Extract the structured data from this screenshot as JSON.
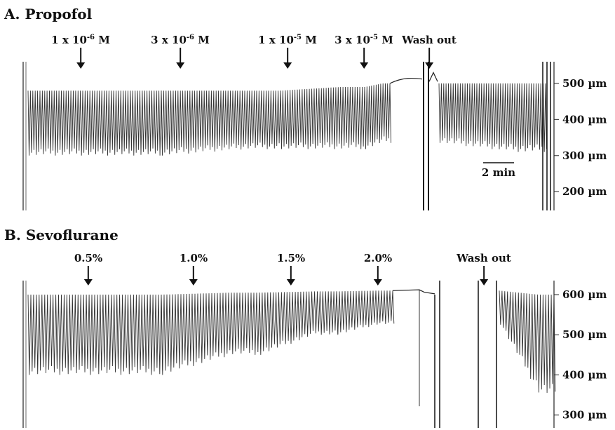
{
  "panels": [
    {
      "id": "A",
      "title": "A. Propofol",
      "markers": [
        {
          "label": "1 x 10",
          "sup": "-6",
          "unit": " M"
        },
        {
          "label": "3 x 10",
          "sup": "-6",
          "unit": " M"
        },
        {
          "label": "1 x 10",
          "sup": "-5",
          "unit": " M"
        },
        {
          "label": "3 x 10",
          "sup": "-5",
          "unit": " M"
        },
        {
          "label": "Wash out",
          "sup": "",
          "unit": ""
        }
      ],
      "scale_bar": "2 min"
    },
    {
      "id": "B",
      "title": "B. Sevoflurane",
      "markers": [
        {
          "label": "0.5%",
          "sup": "",
          "unit": ""
        },
        {
          "label": "1.0%",
          "sup": "",
          "unit": ""
        },
        {
          "label": "1.5%",
          "sup": "",
          "unit": ""
        },
        {
          "label": "2.0%",
          "sup": "",
          "unit": ""
        },
        {
          "label": "Wash out",
          "sup": "",
          "unit": ""
        }
      ]
    }
  ],
  "chart_data": [
    {
      "type": "line",
      "title": "A. Propofol",
      "ylabel": "",
      "ytick_labels": [
        "500 µm",
        "400 µm",
        "300 µm",
        "200 µm"
      ],
      "yticks": [
        500,
        400,
        300,
        200
      ],
      "ylim": [
        148,
        560
      ],
      "annotations": [
        "1 x 10-6 M",
        "3 x 10-6 M",
        "1 x 10-5 M",
        "3 x 10-5 M",
        "Wash out",
        "2 min"
      ],
      "segments": [
        {
          "name": "1 x 10-6 M",
          "max_diameter_um": 480,
          "min_diameter_um": 300
        },
        {
          "name": "3 x 10-6 M",
          "max_diameter_um": 480,
          "min_diameter_um": 318
        },
        {
          "name": "1 x 10-5 M",
          "max_diameter_um": 490,
          "min_diameter_um": 318
        },
        {
          "name": "3 x 10-5 M",
          "max_diameter_um": 500,
          "min_diameter_um": 335
        },
        {
          "name": "Wash out",
          "max_diameter_um": 500,
          "min_diameter_um": 310
        }
      ],
      "color": "#333333"
    },
    {
      "type": "line",
      "title": "B. Sevoflurane",
      "ylabel": "",
      "ytick_labels": [
        "600 µm",
        "500 µm",
        "400 µm",
        "300 µm"
      ],
      "yticks": [
        600,
        500,
        400,
        300
      ],
      "ylim": [
        268,
        635
      ],
      "annotations": [
        "0.5%",
        "1.0%",
        "1.5%",
        "2.0%",
        "Wash out"
      ],
      "segments": [
        {
          "name": "0.5%",
          "max_diameter_um": 600,
          "min_diameter_um": 400
        },
        {
          "name": "1.0%",
          "max_diameter_um": 605,
          "min_diameter_um": 450
        },
        {
          "name": "1.5%",
          "max_diameter_um": 608,
          "min_diameter_um": 500
        },
        {
          "name": "2.0%",
          "max_diameter_um": 610,
          "min_diameter_um": 525
        },
        {
          "name": "Wash out",
          "max_diameter_um": 600,
          "min_diameter_um": 350
        }
      ],
      "color": "#333333"
    }
  ]
}
